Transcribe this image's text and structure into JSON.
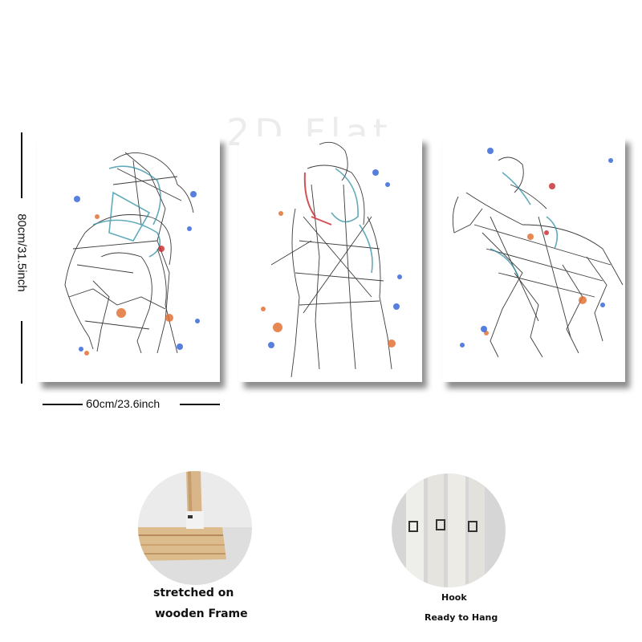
{
  "watermark": "2D Flat",
  "dimensions": {
    "height_label": "80cm/31.5inch",
    "width_number": "60",
    "width_rest": "cm/23.6inch"
  },
  "panels": [
    {
      "subject": "jockey on horse galloping toward viewer, sketch style"
    },
    {
      "subject": "jockey on horse viewed from front, sketch style"
    },
    {
      "subject": "jockey on horse galloping to the left, sketch style"
    }
  ],
  "feature_left": {
    "line1": "stretched on",
    "line2": "wooden Frame"
  },
  "feature_right": {
    "line1": "Hook",
    "line2": "Ready to Hang"
  },
  "colors": {
    "ink": "#1a1a1a",
    "teal": "#2f8fa3",
    "blue": "#2d5fd6",
    "orange": "#e06a2a",
    "red": "#c8262a",
    "wood": "#d9b68a"
  }
}
